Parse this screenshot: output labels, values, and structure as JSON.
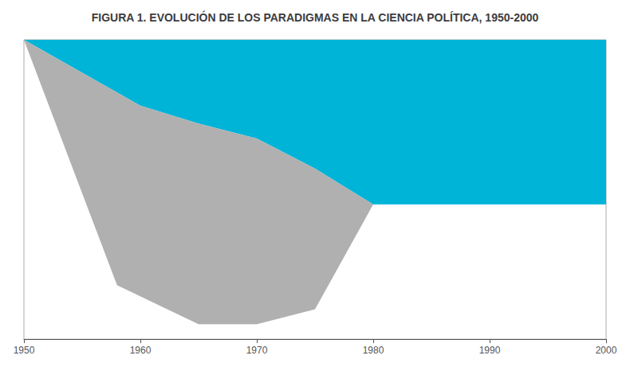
{
  "chart_data": {
    "type": "area",
    "title": "FIGURA 1. EVOLUCIÓN DE LOS PARADIGMAS EN LA CIENCIA POLÍTICA, 1950-2000",
    "xlim": [
      1950,
      2000
    ],
    "ylim": [
      0,
      100
    ],
    "xticks": [
      1950,
      1960,
      1970,
      1980,
      1990,
      2000
    ],
    "tick_labels": "x",
    "grid": false,
    "series": [
      {
        "color": "#b0b0b0",
        "x": [
          1950,
          1960,
          1965,
          1970,
          1975,
          1980,
          2000
        ],
        "values": [
          100,
          78,
          72,
          67,
          57,
          45,
          45
        ],
        "lower_x": [
          1950,
          1958,
          1965,
          1970,
          1975,
          1980,
          2000
        ],
        "lower": [
          100,
          18,
          5,
          5,
          10,
          45,
          45
        ]
      },
      {
        "color": "#00b4d8",
        "x": [
          1950,
          2000
        ],
        "values": [
          100,
          100
        ],
        "lower_x": [
          1950,
          1960,
          1965,
          1970,
          1975,
          1980,
          2000
        ],
        "lower": [
          100,
          78,
          72,
          67,
          57,
          45,
          45
        ]
      }
    ]
  }
}
